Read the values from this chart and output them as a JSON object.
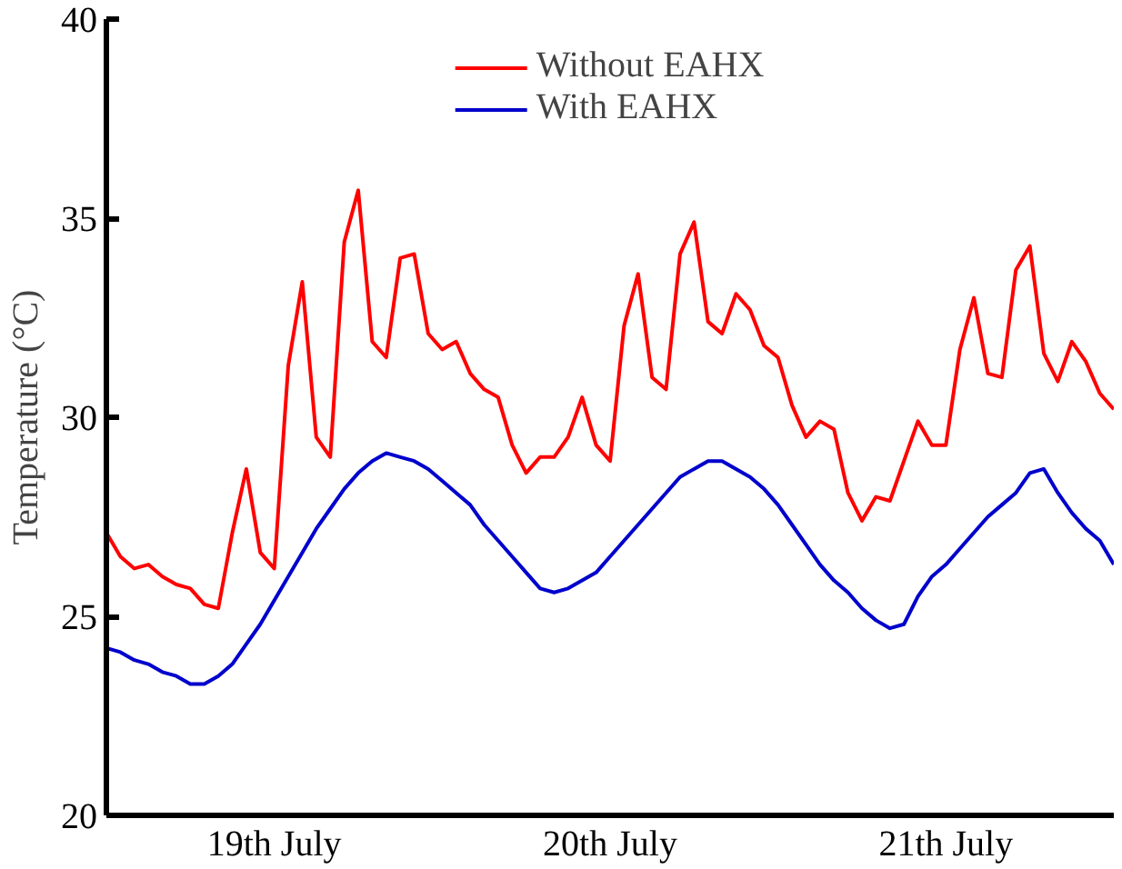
{
  "chart_data": {
    "type": "line",
    "ylabel": "Temperature (°C)",
    "categories": [
      null,
      null,
      null,
      null,
      null,
      null,
      null,
      null,
      null,
      null,
      null,
      null,
      "19th July",
      null,
      null,
      null,
      null,
      null,
      null,
      null,
      null,
      null,
      null,
      null,
      null,
      null,
      null,
      null,
      null,
      null,
      null,
      null,
      null,
      null,
      null,
      null,
      "20th July",
      null,
      null,
      null,
      null,
      null,
      null,
      null,
      null,
      null,
      null,
      null,
      null,
      null,
      null,
      null,
      null,
      null,
      null,
      null,
      null,
      null,
      null,
      null,
      "21th July",
      null,
      null,
      null,
      null,
      null,
      null,
      null,
      null,
      null,
      null,
      null,
      null
    ],
    "ylim": [
      20,
      40
    ],
    "yticks": [
      20,
      25,
      30,
      35,
      40
    ],
    "grid": false,
    "legend": "top",
    "line_style": "solid",
    "marker": "none",
    "series": [
      {
        "name": "Without EAHX",
        "color": "#ff0000",
        "values": [
          27.1,
          26.5,
          26.2,
          26.3,
          26.0,
          25.8,
          25.7,
          25.3,
          25.2,
          27.1,
          28.7,
          26.6,
          26.2,
          31.3,
          33.4,
          29.5,
          29.0,
          34.4,
          35.7,
          31.9,
          31.5,
          34.0,
          34.1,
          32.1,
          31.7,
          31.9,
          31.1,
          30.7,
          30.5,
          29.3,
          28.6,
          29.0,
          29.0,
          29.5,
          30.5,
          29.3,
          28.9,
          32.3,
          33.6,
          31.0,
          30.7,
          34.1,
          34.9,
          32.4,
          32.1,
          33.1,
          32.7,
          31.8,
          31.5,
          30.3,
          29.5,
          29.9,
          29.7,
          28.1,
          27.4,
          28.0,
          27.9,
          28.9,
          29.9,
          29.3,
          29.3,
          31.7,
          33.0,
          31.1,
          31.0,
          33.7,
          34.3,
          31.6,
          30.9,
          31.9,
          31.4,
          30.6,
          30.2
        ]
      },
      {
        "name": "With EAHX",
        "color": "#0000cc",
        "values": [
          24.2,
          24.1,
          23.9,
          23.8,
          23.6,
          23.5,
          23.3,
          23.3,
          23.5,
          23.8,
          24.3,
          24.8,
          25.4,
          26.0,
          26.6,
          27.2,
          27.7,
          28.2,
          28.6,
          28.9,
          29.1,
          29.0,
          28.9,
          28.7,
          28.4,
          28.1,
          27.8,
          27.3,
          26.9,
          26.5,
          26.1,
          25.7,
          25.6,
          25.7,
          25.9,
          26.1,
          26.5,
          26.9,
          27.3,
          27.7,
          28.1,
          28.5,
          28.7,
          28.9,
          28.9,
          28.7,
          28.5,
          28.2,
          27.8,
          27.3,
          26.8,
          26.3,
          25.9,
          25.6,
          25.2,
          24.9,
          24.7,
          24.8,
          25.5,
          26.0,
          26.3,
          26.7,
          27.1,
          27.5,
          27.8,
          28.1,
          28.6,
          28.7,
          28.1,
          27.6,
          27.2,
          26.9,
          26.3
        ]
      }
    ]
  }
}
